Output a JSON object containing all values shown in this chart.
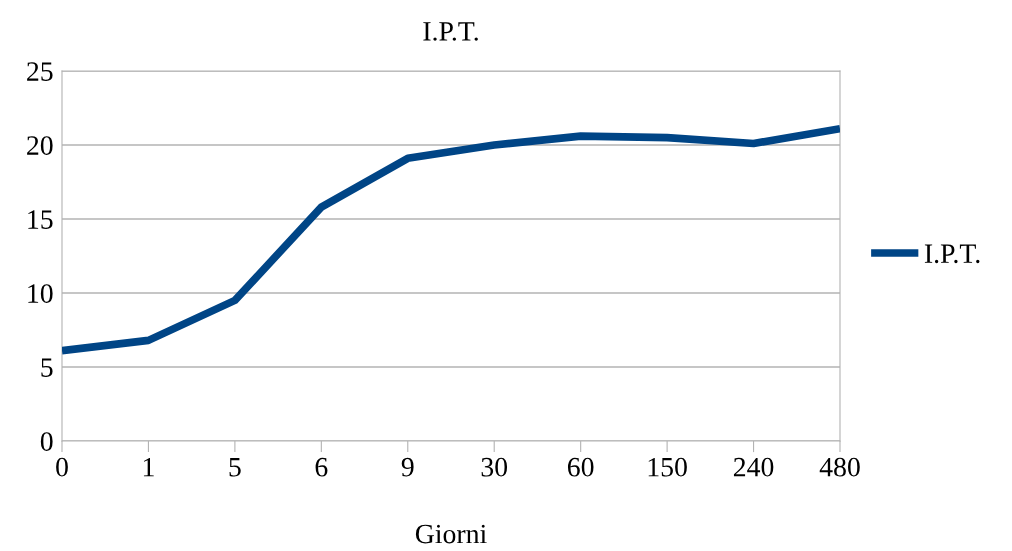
{
  "chart_data": {
    "type": "line",
    "title": "I.P.T.",
    "xlabel": "Giorni",
    "categories": [
      "0",
      "1",
      "5",
      "6",
      "9",
      "30",
      "60",
      "150",
      "240",
      "480"
    ],
    "series": [
      {
        "name": "I.P.T.",
        "color": "#004586",
        "values": [
          6.1,
          6.8,
          9.5,
          15.8,
          19.1,
          20.0,
          20.6,
          20.5,
          20.1,
          21.1
        ]
      }
    ],
    "ylim": [
      0,
      25
    ],
    "yticks": [
      0,
      5,
      10,
      15,
      20,
      25
    ],
    "grid": "y",
    "legend": "right",
    "marker": "none",
    "line_style": "solid"
  }
}
